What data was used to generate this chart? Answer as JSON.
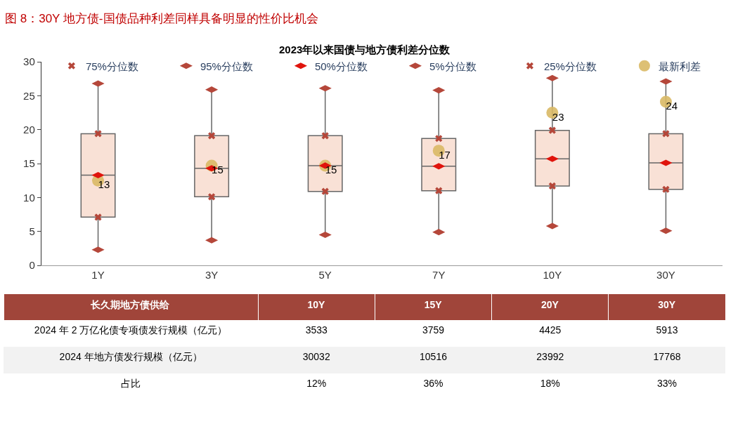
{
  "chart_data": [
    {
      "type": "box",
      "title": "2023年以来国债与地方债利差分位数",
      "annotations": [
        "图 8：30Y 地方债-国债品种利差同样具备明显的性价比机会"
      ],
      "categories": [
        "1Y",
        "3Y",
        "5Y",
        "7Y",
        "10Y",
        "30Y"
      ],
      "color": "#f9e1d6",
      "boxes": [
        {
          "low": 2.3,
          "q1": 7.1,
          "median": 13.3,
          "q3": 19.4,
          "high": 26.8
        },
        {
          "low": 3.7,
          "q1": 10.1,
          "median": 14.3,
          "q3": 19.1,
          "high": 25.9
        },
        {
          "low": 4.5,
          "q1": 10.9,
          "median": 14.7,
          "q3": 19.1,
          "high": 26.1
        },
        {
          "low": 4.9,
          "q1": 11.0,
          "median": 14.6,
          "q3": 18.7,
          "high": 25.8
        },
        {
          "low": 5.8,
          "q1": 11.7,
          "median": 15.7,
          "q3": 19.9,
          "high": 27.6
        },
        {
          "low": 5.1,
          "q1": 11.2,
          "median": 15.1,
          "q3": 19.4,
          "high": 27.1
        }
      ],
      "series": [
        {
          "name": "75%分位数",
          "type": "scatter",
          "color": "#b5473a",
          "marker": "cross",
          "values": [
            19.4,
            19.1,
            19.1,
            18.7,
            19.9,
            19.4
          ]
        },
        {
          "name": "95%分位数",
          "type": "scatter",
          "color": "#b5473a",
          "marker": "diamond",
          "values": [
            26.8,
            25.9,
            26.1,
            25.8,
            27.6,
            27.1
          ]
        },
        {
          "name": "50%分位数",
          "type": "scatter",
          "color": "#e0140c",
          "marker": "diamond",
          "values": [
            13.3,
            14.3,
            14.7,
            14.6,
            15.7,
            15.1
          ]
        },
        {
          "name": "5%分位数",
          "type": "scatter",
          "color": "#b5473a",
          "marker": "diamond",
          "values": [
            2.3,
            3.7,
            4.5,
            4.9,
            5.8,
            5.1
          ]
        },
        {
          "name": "25%分位数",
          "type": "scatter",
          "color": "#b5473a",
          "marker": "cross",
          "values": [
            7.1,
            10.1,
            10.9,
            11.0,
            11.7,
            11.2
          ]
        },
        {
          "name": "最新利差",
          "type": "scatter",
          "color": "#d9b965",
          "marker": "circle",
          "values": [
            12.5,
            14.7,
            14.7,
            16.9,
            22.5,
            24.1
          ],
          "value_labels": [
            "13",
            "15",
            "15",
            "17",
            "23",
            "24"
          ]
        }
      ],
      "ylim": [
        0,
        30
      ],
      "yticks": [
        0,
        5,
        10,
        15,
        20,
        25,
        30
      ],
      "legend": "top"
    },
    {
      "type": "other",
      "title": "长久期地方债供给",
      "categories": [
        "10Y",
        "15Y",
        "20Y",
        "30Y"
      ],
      "y_categories": [
        "2024 年 2 万亿化债专项债发行规模（亿元）",
        "2024 年地方债发行规模（亿元）",
        "占比"
      ],
      "cell_labels": [
        [
          "3533",
          "3759",
          "4425",
          "5913"
        ],
        [
          "30032",
          "10516",
          "23992",
          "17768"
        ],
        [
          "12%",
          "36%",
          "18%",
          "33%"
        ]
      ]
    }
  ]
}
